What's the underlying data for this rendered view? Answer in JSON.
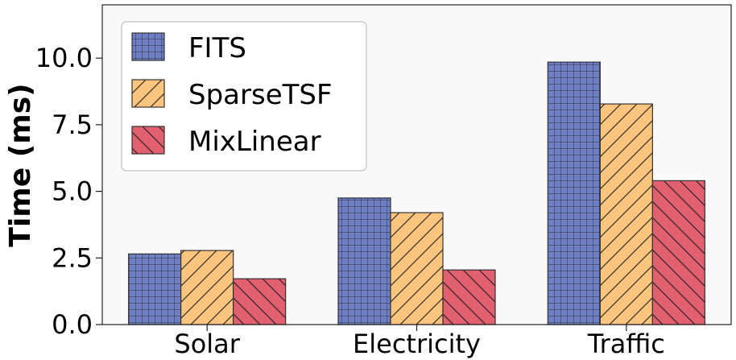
{
  "chart_data": {
    "type": "bar",
    "categories": [
      "Solar",
      "Electricity",
      "Traffic"
    ],
    "series": [
      {
        "name": "FITS",
        "values": [
          2.65,
          4.75,
          9.85
        ],
        "color": "#6f7fc4",
        "hatch": "grid"
      },
      {
        "name": "SparseTSF",
        "values": [
          2.78,
          4.2,
          8.28
        ],
        "color": "#fec57f",
        "hatch": "forward-diagonal"
      },
      {
        "name": "MixLinear",
        "values": [
          1.72,
          2.05,
          5.4
        ],
        "color": "#e0606f",
        "hatch": "back-diagonal"
      }
    ],
    "ylabel": "Time (ms)",
    "xlabel": "",
    "ylim": [
      0,
      12
    ],
    "yticks": [
      "0.0",
      "2.5",
      "5.0",
      "7.5",
      "10.0"
    ],
    "grid": false,
    "legend_position": "top-left",
    "background": "#f9f9f9"
  }
}
